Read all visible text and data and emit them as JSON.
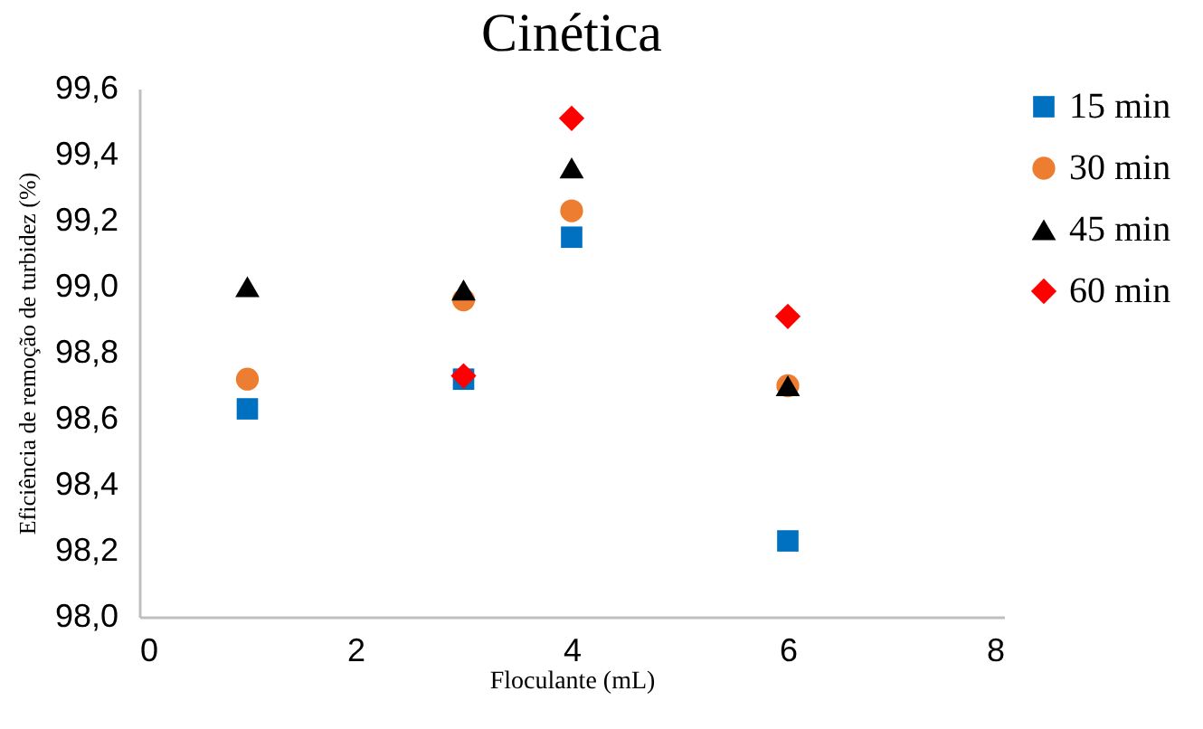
{
  "chart_data": {
    "type": "scatter",
    "title": "Cinética",
    "xlabel": "Floculante (mL)",
    "ylabel": "Eficiência de remoção de turbidez (%)",
    "xlim": [
      0,
      8
    ],
    "xticks": [
      0,
      2,
      4,
      6,
      8
    ],
    "ylim": [
      98.0,
      99.6
    ],
    "yticks": [
      {
        "value": 98.0,
        "label": "98,0"
      },
      {
        "value": 98.2,
        "label": "98,2"
      },
      {
        "value": 98.4,
        "label": "98,4"
      },
      {
        "value": 98.6,
        "label": "98,6"
      },
      {
        "value": 98.8,
        "label": "98,8"
      },
      {
        "value": 99.0,
        "label": "99,0"
      },
      {
        "value": 99.2,
        "label": "99,2"
      },
      {
        "value": 99.4,
        "label": "99,4"
      },
      {
        "value": 99.6,
        "label": "99,6"
      }
    ],
    "grid": false,
    "legend": "right",
    "series": [
      {
        "name": "15 min",
        "color": "#0070c0",
        "marker": "square",
        "x": [
          1,
          3,
          4,
          6
        ],
        "values": [
          98.63,
          98.72,
          99.15,
          98.23
        ]
      },
      {
        "name": "30 min",
        "color": "#ed7d31",
        "marker": "circle",
        "x": [
          1,
          3,
          4,
          6
        ],
        "values": [
          98.72,
          98.96,
          99.23,
          98.7
        ]
      },
      {
        "name": "45 min",
        "color": "#000000",
        "marker": "triangle",
        "x": [
          1,
          3,
          4,
          6
        ],
        "values": [
          99.0,
          98.99,
          99.36,
          98.7
        ]
      },
      {
        "name": "60 min",
        "color": "#ff0000",
        "marker": "diamond",
        "x": [
          3,
          4,
          6
        ],
        "values": [
          98.73,
          99.51,
          98.91
        ]
      }
    ]
  }
}
